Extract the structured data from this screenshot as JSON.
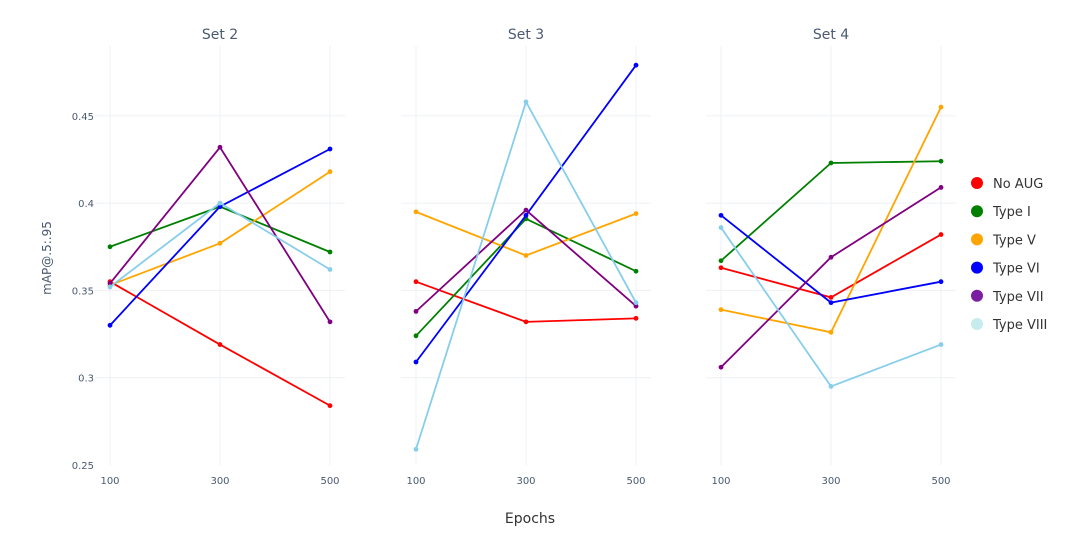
{
  "chart_data": {
    "type": "line",
    "xlabel": "Epochs",
    "ylabel": "mAP@.5:.95",
    "x": [
      100,
      300,
      500
    ],
    "x_tick_labels": [
      "100",
      "300",
      "500"
    ],
    "ylim": [
      0.25,
      0.49
    ],
    "y_ticks": [
      0.25,
      0.3,
      0.35,
      0.4,
      0.45
    ],
    "y_tick_labels": [
      "0.25",
      "0.3",
      "0.35",
      "0.4",
      "0.45"
    ],
    "grid": true,
    "legend": "right",
    "legend_entries": [
      {
        "name": "No AUG",
        "color": "#ff0000"
      },
      {
        "name": "Type I",
        "color": "#008000"
      },
      {
        "name": "Type V",
        "color": "#ffa500"
      },
      {
        "name": "Type VI",
        "color": "#0000ff"
      },
      {
        "name": "Type VII",
        "color": "#7b1fa2"
      },
      {
        "name": "Type VIII",
        "color": "#c6eded"
      }
    ],
    "subplots": [
      {
        "title": "Set 2",
        "series": [
          {
            "name": "No AUG",
            "color": "#ff0000",
            "values": [
              0.355,
              0.319,
              0.284
            ]
          },
          {
            "name": "Type I",
            "color": "#008000",
            "values": [
              0.375,
              0.398,
              0.372
            ]
          },
          {
            "name": "Type V",
            "color": "#ffa500",
            "values": [
              0.353,
              0.377,
              0.418
            ]
          },
          {
            "name": "Type VI",
            "color": "#0000ff",
            "values": [
              0.33,
              0.398,
              0.431
            ]
          },
          {
            "name": "Type VII",
            "color": "#800080",
            "values": [
              0.354,
              0.432,
              0.332
            ]
          },
          {
            "name": "Type VIII",
            "color": "#87ceeb",
            "values": [
              0.352,
              0.4,
              0.362
            ]
          }
        ]
      },
      {
        "title": "Set 3",
        "series": [
          {
            "name": "No AUG",
            "color": "#ff0000",
            "values": [
              0.355,
              0.332,
              0.334
            ]
          },
          {
            "name": "Type I",
            "color": "#008000",
            "values": [
              0.324,
              0.391,
              0.361
            ]
          },
          {
            "name": "Type V",
            "color": "#ffa500",
            "values": [
              0.395,
              0.37,
              0.394
            ]
          },
          {
            "name": "Type VI",
            "color": "#0000ff",
            "values": [
              0.309,
              0.393,
              0.479
            ]
          },
          {
            "name": "Type VII",
            "color": "#800080",
            "values": [
              0.338,
              0.396,
              0.341
            ]
          },
          {
            "name": "Type VIII",
            "color": "#87ceeb",
            "values": [
              0.259,
              0.458,
              0.343
            ]
          }
        ]
      },
      {
        "title": "Set 4",
        "series": [
          {
            "name": "No AUG",
            "color": "#ff0000",
            "values": [
              0.363,
              0.346,
              0.382
            ]
          },
          {
            "name": "Type I",
            "color": "#008000",
            "values": [
              0.367,
              0.423,
              0.424
            ]
          },
          {
            "name": "Type V",
            "color": "#ffa500",
            "values": [
              0.339,
              0.326,
              0.455
            ]
          },
          {
            "name": "Type VI",
            "color": "#0000ff",
            "values": [
              0.393,
              0.343,
              0.355
            ]
          },
          {
            "name": "Type VII",
            "color": "#800080",
            "values": [
              0.306,
              0.369,
              0.409
            ]
          },
          {
            "name": "Type VIII",
            "color": "#87ceeb",
            "values": [
              0.386,
              0.295,
              0.319
            ]
          }
        ]
      }
    ]
  }
}
